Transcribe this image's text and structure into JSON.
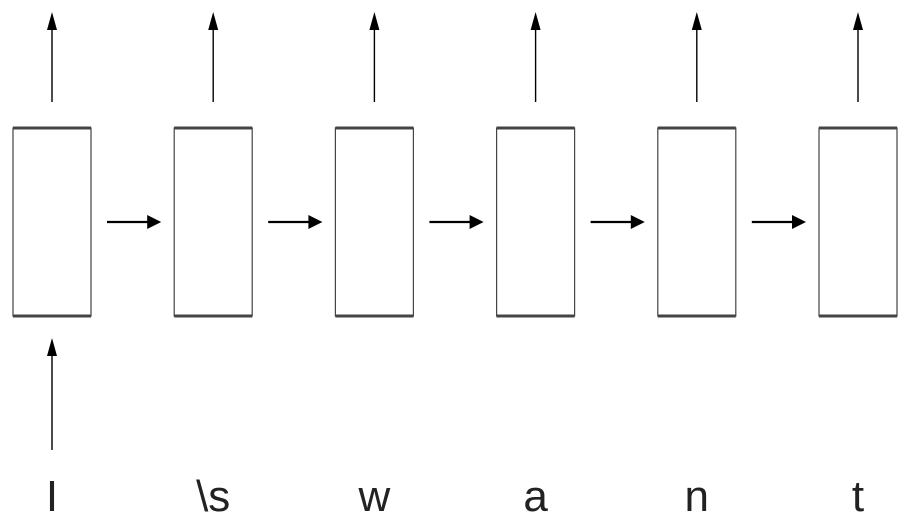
{
  "diagram": {
    "tokens": [
      "I",
      "\\s",
      "w",
      "a",
      "n",
      "t"
    ],
    "input_arrow_positions": [
      0
    ],
    "colors": {
      "box_stroke": "#444444",
      "arrow": "#000000",
      "text": "#222222",
      "background": "#ffffff"
    },
    "icons": {
      "output_arrow": "arrow-up",
      "recurrent_arrow": "arrow-right",
      "input_arrow": "arrow-up"
    }
  }
}
